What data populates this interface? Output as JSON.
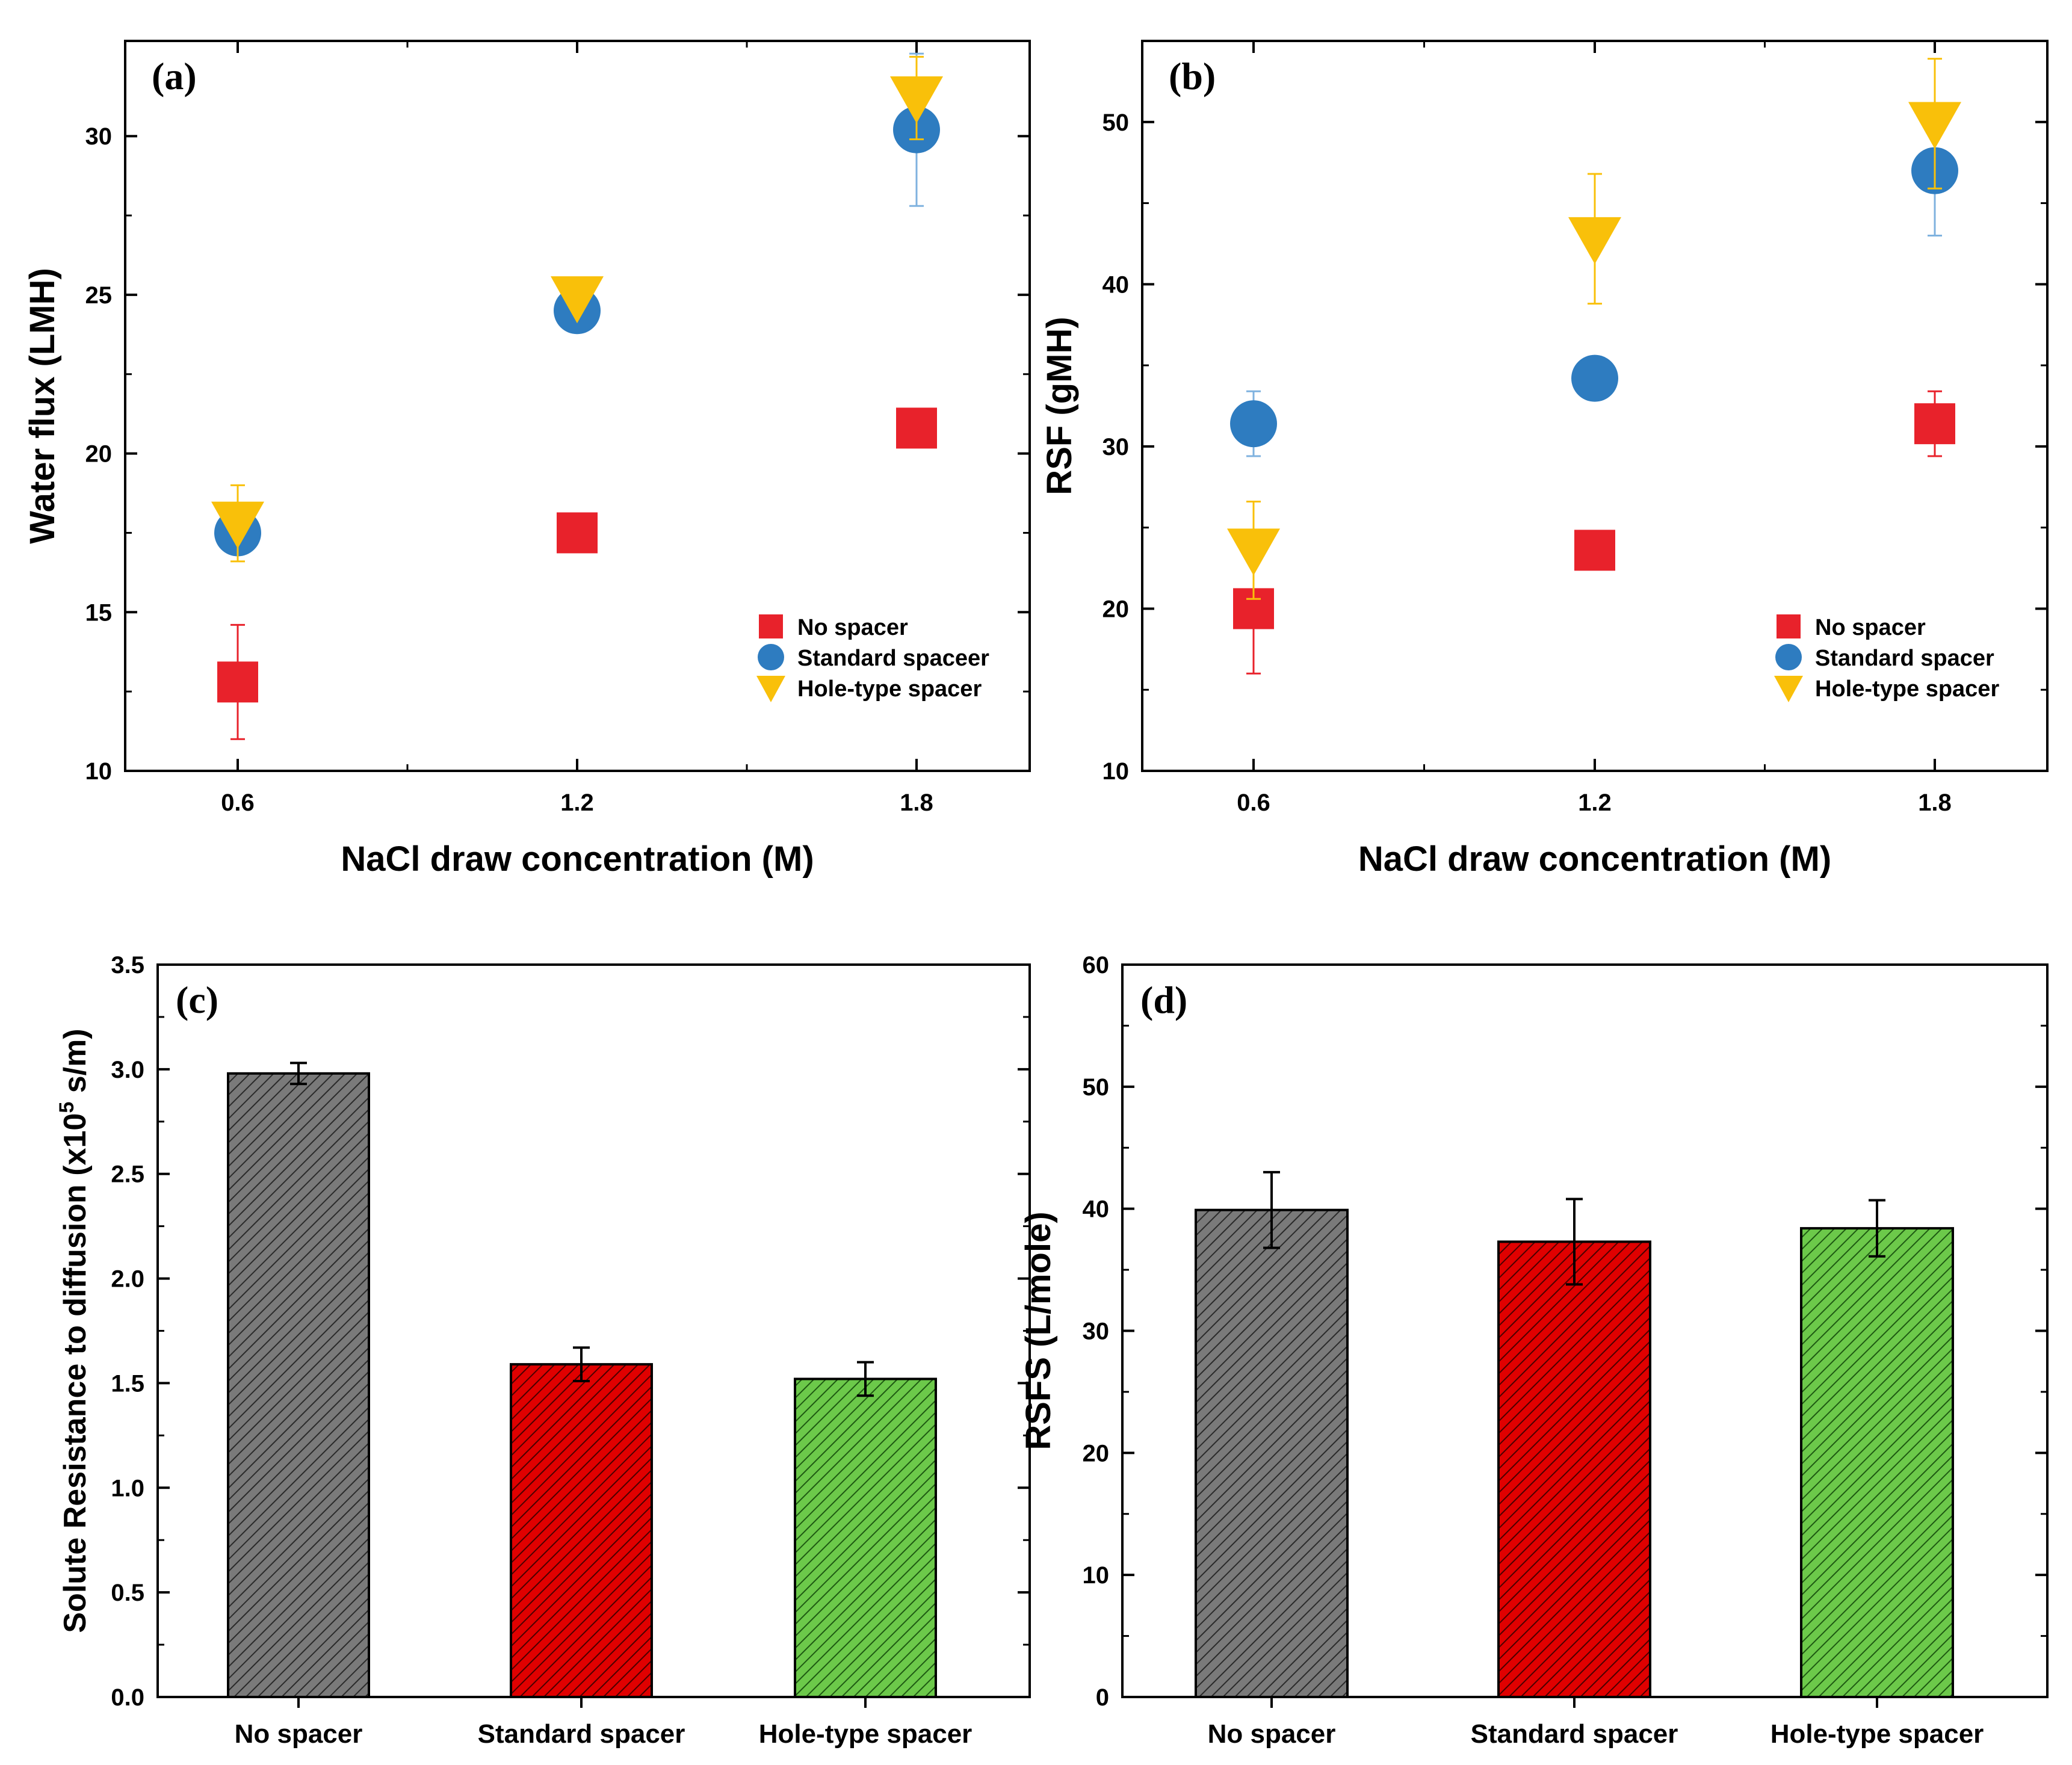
{
  "chart_data": [
    {
      "id": "a",
      "type": "scatter",
      "panel_label": "(a)",
      "xlabel": "NaCl draw concentration (M)",
      "ylabel": "Water flux (LMH)",
      "categories": [
        "0.6",
        "1.2",
        "1.8"
      ],
      "ylim": [
        10,
        33
      ],
      "yticks": [
        "10",
        "15",
        "20",
        "25",
        "30"
      ],
      "legend_position": "bottom-right",
      "series": [
        {
          "name": "No spacer",
          "marker": "square",
          "color": "#e8222b",
          "err_color": "#e8222b",
          "values": [
            12.8,
            17.5,
            20.8
          ],
          "errors": [
            1.8,
            0.2,
            0.2
          ]
        },
        {
          "name": "Standard spaceer",
          "marker": "circle",
          "color": "#2e7cc0",
          "err_color": "#7fb2df",
          "values": [
            17.5,
            24.5,
            30.2
          ],
          "errors": [
            0.3,
            0.3,
            2.4
          ]
        },
        {
          "name": "Hole-type spacer",
          "marker": "triangle-down",
          "color": "#f9c00a",
          "err_color": "#f9c00a",
          "values": [
            17.8,
            24.9,
            31.2
          ],
          "errors": [
            1.2,
            0.3,
            1.3
          ]
        }
      ]
    },
    {
      "id": "b",
      "type": "scatter",
      "panel_label": "(b)",
      "xlabel": "NaCl draw concentration (M)",
      "ylabel": "RSF (gMH)",
      "categories": [
        "0.6",
        "1.2",
        "1.8"
      ],
      "ylim": [
        10,
        55
      ],
      "yticks": [
        "10",
        "20",
        "30",
        "40",
        "50"
      ],
      "legend_position": "bottom-right",
      "series": [
        {
          "name": "No spacer",
          "marker": "square",
          "color": "#e8222b",
          "err_color": "#e8222b",
          "values": [
            20.0,
            23.6,
            31.4
          ],
          "errors": [
            4.0,
            0.3,
            2.0
          ]
        },
        {
          "name": "Standard spacer",
          "marker": "circle",
          "color": "#2e7cc0",
          "err_color": "#7fb2df",
          "values": [
            31.4,
            34.2,
            47.0
          ],
          "errors": [
            2.0,
            0.3,
            4.0
          ]
        },
        {
          "name": "Hole-type spacer",
          "marker": "triangle-down",
          "color": "#f9c00a",
          "err_color": "#f9c00a",
          "values": [
            23.6,
            42.8,
            49.9
          ],
          "errors": [
            3.0,
            4.0,
            4.0
          ]
        }
      ]
    },
    {
      "id": "c",
      "type": "bar",
      "panel_label": "(c)",
      "xlabel": "",
      "ylabel_parts": [
        "Solute Resistance to diffusion (x10",
        "5",
        " s/m)"
      ],
      "categories": [
        "No spacer",
        "Standard spacer",
        "Hole-type spacer"
      ],
      "values": [
        2.98,
        1.59,
        1.52
      ],
      "errors": [
        0.05,
        0.08,
        0.08
      ],
      "bar_colors": [
        "#7a7a7a",
        "#e00000",
        "#6cc94a"
      ],
      "ylim": [
        0,
        3.5
      ],
      "yticks": [
        "0.0",
        "0.5",
        "1.0",
        "1.5",
        "2.0",
        "2.5",
        "3.0",
        "3.5"
      ]
    },
    {
      "id": "d",
      "type": "bar",
      "panel_label": "(d)",
      "xlabel": "",
      "ylabel": "RSFS (L/mole)",
      "categories": [
        "No spacer",
        "Standard spacer",
        "Hole-type spacer"
      ],
      "values": [
        39.9,
        37.3,
        38.4
      ],
      "errors": [
        3.1,
        3.5,
        2.3
      ],
      "bar_colors": [
        "#7a7a7a",
        "#e00000",
        "#6cc94a"
      ],
      "ylim": [
        0,
        60
      ],
      "yticks": [
        "0",
        "10",
        "20",
        "30",
        "40",
        "50",
        "60"
      ]
    }
  ]
}
